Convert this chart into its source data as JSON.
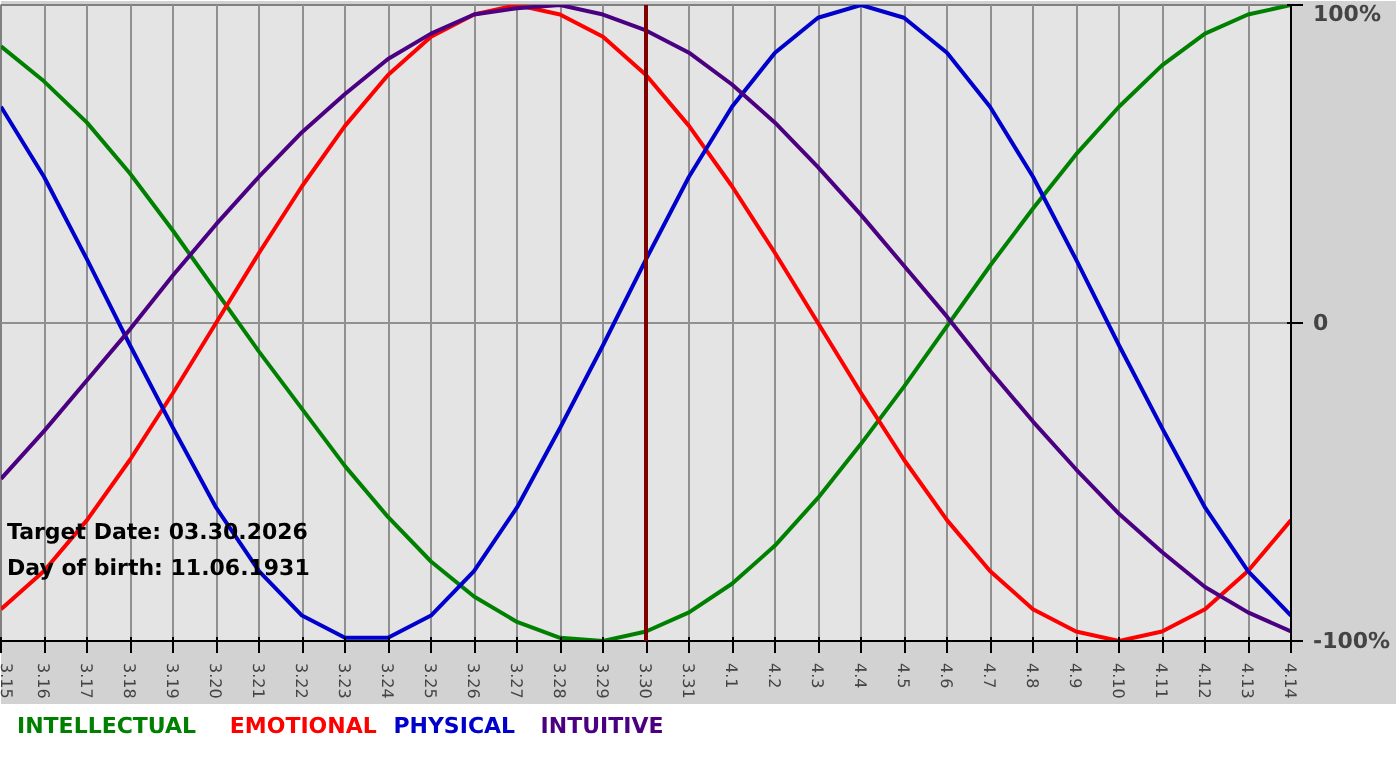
{
  "chart_data": {
    "type": "line",
    "categories": [
      "3.15",
      "3.16",
      "3.17",
      "3.18",
      "3.19",
      "3.20",
      "3.21",
      "3.22",
      "3.23",
      "3.24",
      "3.25",
      "3.26",
      "3.27",
      "3.28",
      "3.29",
      "3.30",
      "3.31",
      "4.1",
      "4.2",
      "4.3",
      "4.4",
      "4.5",
      "4.6",
      "4.7",
      "4.8",
      "4.9",
      "4.10",
      "4.11",
      "4.12",
      "4.13",
      "4.14"
    ],
    "series": [
      {
        "name": "INTELLECTUAL",
        "color": "#008000",
        "values": [
          87,
          76,
          63,
          47,
          29,
          10,
          -9,
          -27,
          -45,
          -61,
          -75,
          -86,
          -94,
          -99,
          -100,
          -97,
          -91,
          -82,
          -70,
          -55,
          -38,
          -20,
          -1,
          18,
          36,
          53,
          68,
          81,
          91,
          97,
          100
        ]
      },
      {
        "name": "EMOTIONAL",
        "color": "#ff0000",
        "values": [
          -90,
          -78,
          -62,
          -43,
          -22,
          0,
          22,
          43,
          62,
          78,
          90,
          97,
          100,
          97,
          90,
          78,
          62,
          43,
          22,
          0,
          -22,
          -43,
          -62,
          -78,
          -90,
          -97,
          -100,
          -97,
          -90,
          -78,
          -62
        ]
      },
      {
        "name": "PHYSICAL",
        "color": "#0000cc",
        "values": [
          68,
          46,
          20,
          -7,
          -33,
          -58,
          -78,
          -92,
          -99,
          -99,
          -92,
          -78,
          -58,
          -33,
          -7,
          20,
          46,
          68,
          85,
          96,
          100,
          96,
          85,
          68,
          46,
          20,
          -7,
          -33,
          -58,
          -78,
          -92
        ]
      },
      {
        "name": "INTUITIVE",
        "color": "#4b0082",
        "values": [
          -49,
          -34,
          -18,
          -2,
          15,
          31,
          46,
          60,
          72,
          83,
          91,
          97,
          99,
          100,
          97,
          92,
          85,
          75,
          63,
          49,
          34,
          18,
          2,
          -15,
          -31,
          -46,
          -60,
          -72,
          -83,
          -91,
          -97
        ]
      }
    ],
    "ylim": [
      -100,
      100
    ],
    "yticks": [
      {
        "value": 100,
        "label": "100%"
      },
      0,
      {
        "value": -100,
        "label": "-100%"
      }
    ],
    "grid": true,
    "legend": "bottom",
    "marker": "none",
    "line_style": "solid",
    "ref_lines": [
      {
        "axis": "x",
        "value": "3.30",
        "color": "#800000"
      }
    ],
    "annotations": [
      "Target Date: 03.30.2026",
      "Day of birth: 11.06.1931"
    ]
  }
}
